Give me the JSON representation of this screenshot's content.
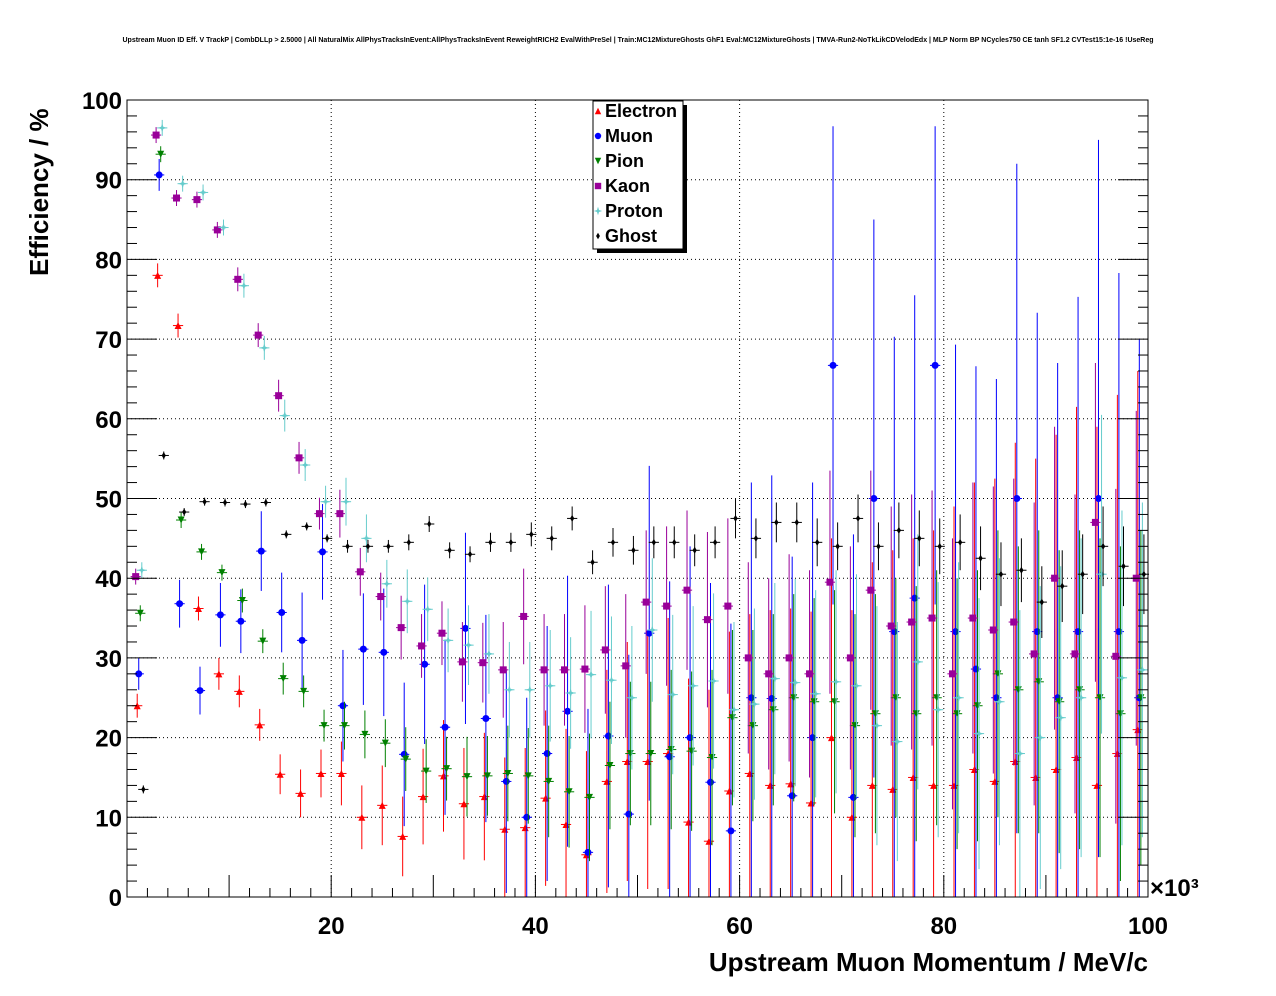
{
  "chart_data": {
    "type": "scatter",
    "title": "Upstream Muon ID Eff. V TrackP | CombDLLp > 2.5000 | All NaturalMix AllPhysTracksInEvent:AllPhysTracksInEvent ReweightRICH2 EvalWithPreSel | Train:MC12MixtureGhosts GhF1 Eval:MC12MixtureGhosts | TMVA-Run2-NoTkLikCDVelodEdx | MLP Norm BP NCycles750 CE tanh SF1.2 CVTest15:1e-16 !UseReg",
    "xlabel": "Upstream Muon Momentum / MeV/c",
    "ylabel": "Efficiency / %",
    "x_multiplier": "×10³",
    "xlim": [
      0,
      100
    ],
    "ylim": [
      0,
      100
    ],
    "xticks": [
      20,
      40,
      60,
      80,
      100
    ],
    "yticks": [
      0,
      10,
      20,
      30,
      40,
      50,
      60,
      70,
      80,
      90,
      100
    ],
    "grid": true,
    "legend_position": "top-center",
    "x": [
      1,
      3,
      5,
      7,
      9,
      11,
      13,
      15,
      17,
      19,
      21,
      23,
      25,
      27,
      29,
      31,
      33,
      35,
      37,
      39,
      41,
      43,
      45,
      47,
      49,
      51,
      53,
      55,
      57,
      59,
      61,
      63,
      65,
      67,
      69,
      71,
      73,
      75,
      77,
      79,
      81,
      83,
      85,
      87,
      89,
      91,
      93,
      95,
      97,
      99
    ],
    "series": [
      {
        "name": "Electron",
        "color": "#ff0000",
        "marker": "triangle-up",
        "values": [
          24,
          78,
          71.7,
          36.2,
          28,
          25.8,
          21.6,
          15.4,
          13,
          15.5,
          15.5,
          10,
          11.5,
          7.6,
          12.6,
          15.2,
          11.7,
          12.6,
          8.5,
          8.7,
          12.4,
          9.1,
          5.3,
          14.5,
          17,
          17,
          18,
          9.4,
          7,
          13.3,
          15.5,
          14,
          14.2,
          11.8,
          20,
          10,
          14,
          13.5,
          15,
          14,
          14,
          16,
          14.5,
          17,
          15,
          16,
          17.5,
          14,
          18,
          21
        ],
        "err": [
          1.5,
          1.5,
          1.5,
          1.5,
          2,
          2,
          2,
          2.5,
          3,
          3,
          4,
          4,
          5,
          5,
          6,
          7,
          7,
          8,
          9,
          10,
          11,
          12,
          13,
          14,
          15,
          16,
          17,
          18,
          19,
          20,
          20,
          22,
          22,
          24,
          25,
          26,
          28,
          30,
          30,
          32,
          35,
          36,
          38,
          40,
          40,
          42,
          44,
          45,
          45,
          45
        ]
      },
      {
        "name": "Muon",
        "color": "#0000ff",
        "marker": "circle",
        "values": [
          28,
          90.6,
          36.8,
          25.9,
          35.4,
          34.6,
          43.4,
          35.7,
          32.2,
          43.3,
          24,
          31.1,
          30.7,
          17.9,
          29.2,
          21.3,
          33.7,
          22.4,
          14.5,
          10,
          18,
          23.3,
          5.6,
          20.2,
          10.4,
          33.1,
          17.6,
          20,
          14.4,
          8.3,
          25,
          24.9,
          12.7,
          20,
          66.7,
          12.5,
          50,
          33.3,
          37.5,
          66.7,
          33.3,
          28.6,
          25,
          50,
          33.3,
          25,
          33.3,
          50,
          33.3,
          25
        ],
        "err": [
          2,
          2,
          3,
          3,
          4,
          4,
          5,
          5,
          6,
          6,
          7,
          7,
          8,
          9,
          10,
          11,
          12,
          13,
          14,
          15,
          16,
          17,
          18,
          19,
          20,
          21,
          22,
          24,
          25,
          26,
          27,
          28,
          30,
          32,
          30,
          33,
          35,
          37,
          38,
          30,
          36,
          38,
          40,
          42,
          40,
          42,
          42,
          45,
          45,
          45
        ]
      },
      {
        "name": "Pion",
        "color": "#008000",
        "marker": "triangle-down",
        "values": [
          35.6,
          93.2,
          47.3,
          43.3,
          40.7,
          37.2,
          32.1,
          27.4,
          25.8,
          21.5,
          21.5,
          20.4,
          19.3,
          17.3,
          15.8,
          16.1,
          15.1,
          15.2,
          15.5,
          15.2,
          14.5,
          13.2,
          12.5,
          16.5,
          18,
          18,
          18.5,
          18.3,
          17.5,
          22.5,
          21.5,
          23.5,
          25,
          24.5,
          24.5,
          21.5,
          23,
          25,
          23,
          25,
          23,
          24,
          28,
          26,
          27,
          24.5,
          26,
          25,
          23,
          25
        ],
        "err": [
          1,
          1,
          1,
          1,
          1,
          1.5,
          1.5,
          2,
          2,
          2,
          3,
          3,
          3,
          4,
          4,
          4,
          5,
          5,
          6,
          6,
          7,
          7,
          8,
          8,
          9,
          9,
          10,
          10,
          11,
          11,
          12,
          12,
          13,
          13,
          14,
          14,
          15,
          15,
          16,
          16,
          17,
          17,
          18,
          18,
          19,
          19,
          20,
          20,
          21,
          21
        ]
      },
      {
        "name": "Kaon",
        "color": "#990099",
        "marker": "square",
        "values": [
          40.2,
          95.6,
          87.7,
          87.5,
          83.7,
          77.5,
          70.5,
          62.9,
          55.1,
          48.1,
          48.1,
          40.8,
          37.7,
          33.8,
          31.5,
          33.1,
          29.5,
          29.4,
          28.5,
          35.2,
          28.5,
          28.5,
          28.6,
          31,
          29,
          37,
          36.5,
          38.5,
          34.8,
          36.5,
          30,
          28,
          30,
          28,
          39.5,
          30,
          38.5,
          34,
          34.5,
          35,
          28,
          35,
          33.5,
          34.5,
          30.5,
          40,
          30.5,
          47,
          30.2,
          40
        ],
        "err": [
          1,
          1,
          1,
          1,
          1,
          1.5,
          1.5,
          2,
          2,
          2,
          3,
          3,
          3,
          4,
          4,
          4,
          5,
          5,
          6,
          6,
          7,
          7,
          8,
          8,
          9,
          9,
          10,
          10,
          11,
          11,
          12,
          12,
          13,
          13,
          14,
          14,
          15,
          15,
          16,
          16,
          17,
          17,
          18,
          18,
          19,
          19,
          20,
          20,
          21,
          21
        ]
      },
      {
        "name": "Proton",
        "color": "#66cccc",
        "marker": "star",
        "values": [
          41,
          96.5,
          89.5,
          88.4,
          84,
          76.7,
          68.9,
          60.4,
          54.2,
          49.6,
          49.6,
          45,
          39.3,
          37.1,
          36.1,
          32.2,
          31.6,
          30.5,
          26,
          26,
          26.5,
          25.6,
          27.9,
          27.2,
          25,
          33.5,
          25.4,
          26.5,
          27.1,
          23.5,
          24.2,
          27.4,
          26.9,
          25.5,
          27,
          26.5,
          21.5,
          19.5,
          29.5,
          23.5,
          25,
          20.5,
          24.5,
          18,
          20,
          22.5,
          25,
          40.5,
          27.5,
          28.5
        ],
        "err": [
          1,
          1,
          1,
          1,
          1,
          1.5,
          1.5,
          2,
          2,
          2,
          3,
          3,
          3,
          4,
          4,
          4,
          5,
          5,
          6,
          6,
          7,
          7,
          8,
          8,
          9,
          9,
          10,
          10,
          11,
          11,
          12,
          12,
          13,
          13,
          14,
          14,
          15,
          15,
          16,
          16,
          17,
          17,
          18,
          18,
          19,
          19,
          20,
          20,
          21,
          21
        ]
      },
      {
        "name": "Ghost",
        "color": "#000000",
        "marker": "cross",
        "values": [
          13.5,
          55.4,
          48.3,
          49.6,
          49.5,
          49.3,
          49.5,
          45.5,
          46.5,
          45,
          44,
          44,
          44,
          44.5,
          46.8,
          43.5,
          43,
          44.5,
          44.5,
          45.5,
          45,
          47.5,
          42,
          44.5,
          43.5,
          44.5,
          44.5,
          43.5,
          44.5,
          47.5,
          45,
          47,
          47,
          44.5,
          44,
          47.5,
          44,
          46,
          45,
          44,
          44.5,
          42.5,
          40.5,
          41,
          37,
          39,
          40.5,
          44,
          41.5,
          40.5
        ],
        "err": [
          0.5,
          0.5,
          0.5,
          0.5,
          0.5,
          0.5,
          0.5,
          0.5,
          0.5,
          0.5,
          0.8,
          0.8,
          0.8,
          1,
          1,
          1,
          1,
          1.2,
          1.2,
          1.5,
          1.5,
          1.5,
          1.5,
          1.8,
          1.8,
          2,
          2,
          2,
          2,
          2.5,
          2.5,
          2.5,
          2.5,
          3,
          3,
          3,
          3,
          3.5,
          3.5,
          3.5,
          3.5,
          4,
          4,
          4,
          4.5,
          4.5,
          5,
          5,
          5,
          5
        ]
      }
    ]
  }
}
